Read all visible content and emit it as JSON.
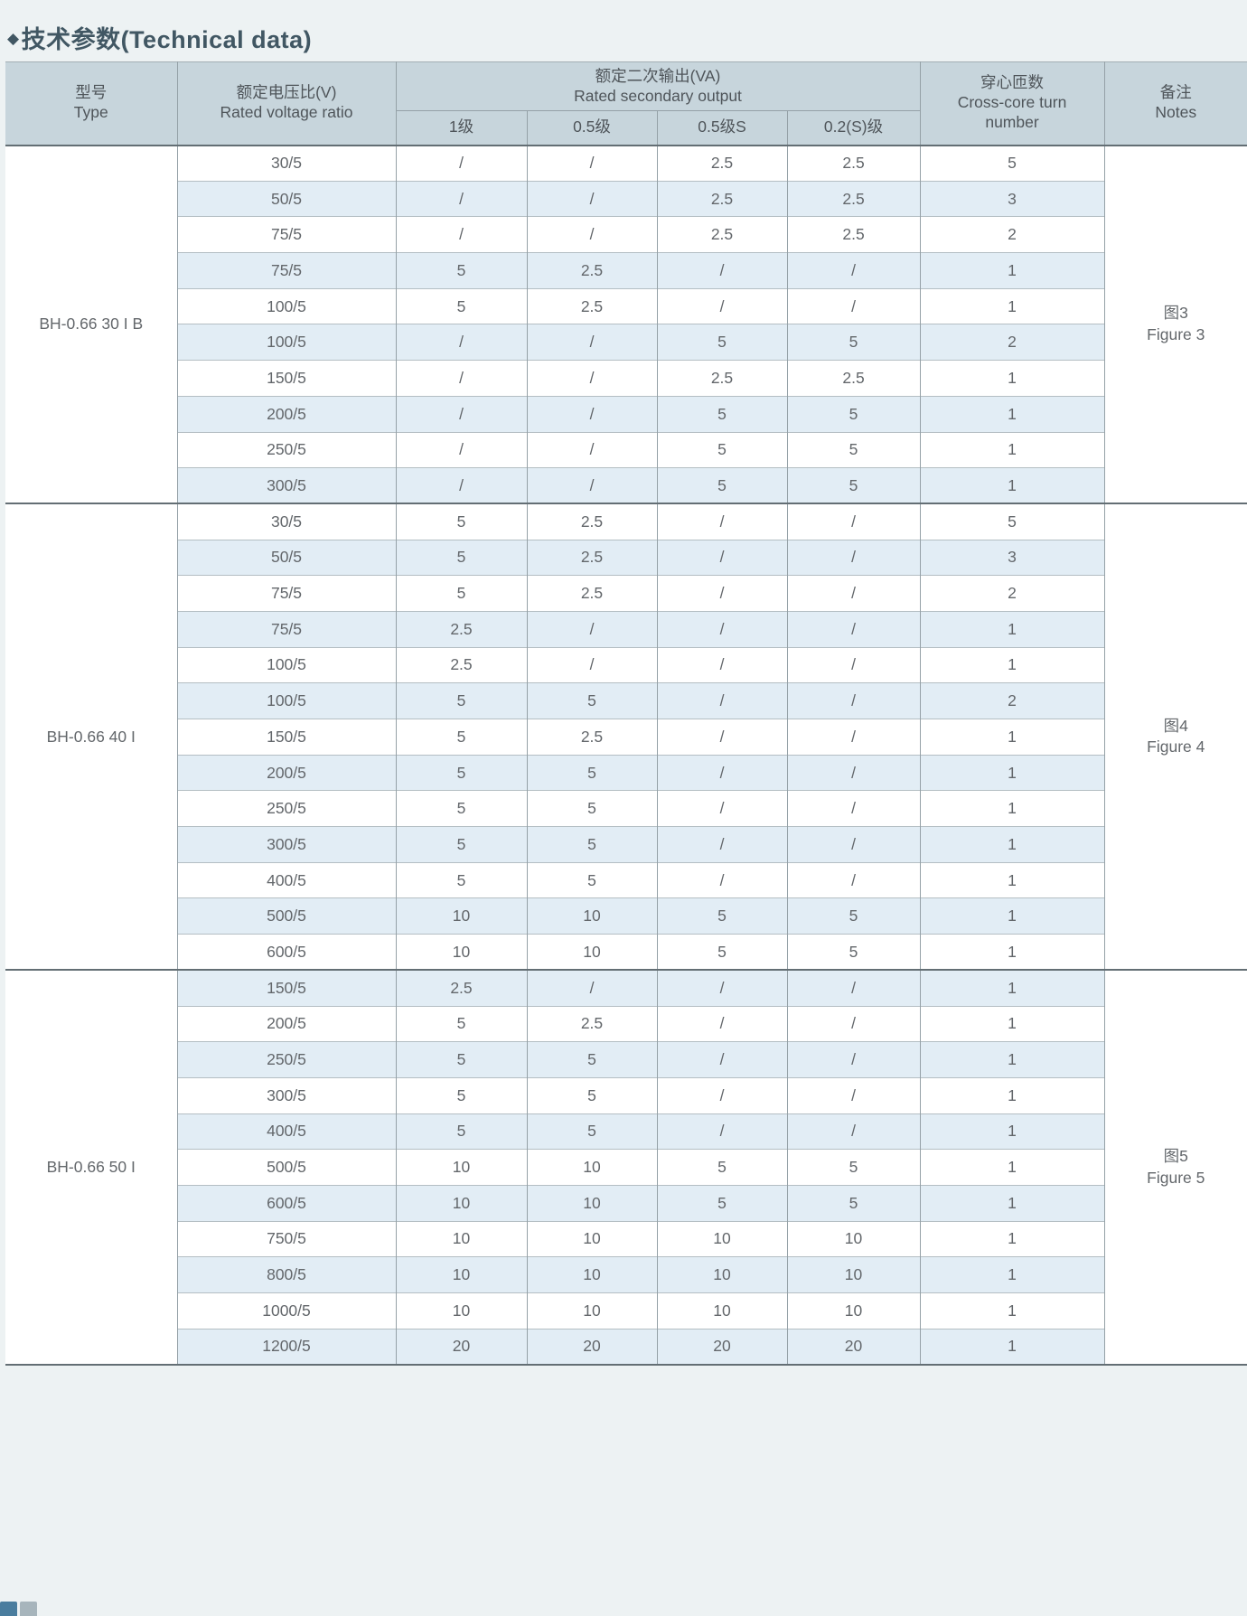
{
  "title": {
    "bullet": "◆",
    "text": "技术参数(Technical data)"
  },
  "colors": {
    "page_bg": "#edf2f3",
    "header_bg": "#c7d5dc",
    "stripe_bg": "#e2edf5",
    "title_color": "#415763",
    "text": "#63676b"
  },
  "table": {
    "header": {
      "type": {
        "zh": "型号",
        "en": "Type"
      },
      "ratio": {
        "zh": "额定电压比(V)",
        "en": "Rated voltage ratio"
      },
      "output": {
        "zh": "额定二次输出(VA)",
        "en": "Rated secondary output"
      },
      "turns": {
        "zh": "穿心匝数",
        "en": "Cross-core turn number"
      },
      "notes": {
        "zh": "备注",
        "en": "Notes"
      },
      "output_classes": [
        "1级",
        "0.5级",
        "0.5级S",
        "0.2(S)级"
      ]
    },
    "sections": [
      {
        "type": "BH-0.66  30 I B",
        "note_zh": "图3",
        "note_en": "Figure 3",
        "rows": [
          [
            "30/5",
            "/",
            "/",
            "2.5",
            "2.5",
            "5"
          ],
          [
            "50/5",
            "/",
            "/",
            "2.5",
            "2.5",
            "3"
          ],
          [
            "75/5",
            "/",
            "/",
            "2.5",
            "2.5",
            "2"
          ],
          [
            "75/5",
            "5",
            "2.5",
            "/",
            "/",
            "1"
          ],
          [
            "100/5",
            "5",
            "2.5",
            "/",
            "/",
            "1"
          ],
          [
            "100/5",
            "/",
            "/",
            "5",
            "5",
            "2"
          ],
          [
            "150/5",
            "/",
            "/",
            "2.5",
            "2.5",
            "1"
          ],
          [
            "200/5",
            "/",
            "/",
            "5",
            "5",
            "1"
          ],
          [
            "250/5",
            "/",
            "/",
            "5",
            "5",
            "1"
          ],
          [
            "300/5",
            "/",
            "/",
            "5",
            "5",
            "1"
          ]
        ]
      },
      {
        "type": "BH-0.66 40 I",
        "note_zh": "图4",
        "note_en": "Figure 4",
        "rows": [
          [
            "30/5",
            "5",
            "2.5",
            "/",
            "/",
            "5"
          ],
          [
            "50/5",
            "5",
            "2.5",
            "/",
            "/",
            "3"
          ],
          [
            "75/5",
            "5",
            "2.5",
            "/",
            "/",
            "2"
          ],
          [
            "75/5",
            "2.5",
            "/",
            "/",
            "/",
            "1"
          ],
          [
            "100/5",
            "2.5",
            "/",
            "/",
            "/",
            "1"
          ],
          [
            "100/5",
            "5",
            "5",
            "/",
            "/",
            "2"
          ],
          [
            "150/5",
            "5",
            "2.5",
            "/",
            "/",
            "1"
          ],
          [
            "200/5",
            "5",
            "5",
            "/",
            "/",
            "1"
          ],
          [
            "250/5",
            "5",
            "5",
            "/",
            "/",
            "1"
          ],
          [
            "300/5",
            "5",
            "5",
            "/",
            "/",
            "1"
          ],
          [
            "400/5",
            "5",
            "5",
            "/",
            "/",
            "1"
          ],
          [
            "500/5",
            "10",
            "10",
            "5",
            "5",
            "1"
          ],
          [
            "600/5",
            "10",
            "10",
            "5",
            "5",
            "1"
          ]
        ]
      },
      {
        "type": "BH-0.66  50 I",
        "note_zh": "图5",
        "note_en": "Figure 5",
        "rows": [
          [
            "150/5",
            "2.5",
            "/",
            "/",
            "/",
            "1"
          ],
          [
            "200/5",
            "5",
            "2.5",
            "/",
            "/",
            "1"
          ],
          [
            "250/5",
            "5",
            "5",
            "/",
            "/",
            "1"
          ],
          [
            "300/5",
            "5",
            "5",
            "/",
            "/",
            "1"
          ],
          [
            "400/5",
            "5",
            "5",
            "/",
            "/",
            "1"
          ],
          [
            "500/5",
            "10",
            "10",
            "5",
            "5",
            "1"
          ],
          [
            "600/5",
            "10",
            "10",
            "5",
            "5",
            "1"
          ],
          [
            "750/5",
            "10",
            "10",
            "10",
            "10",
            "1"
          ],
          [
            "800/5",
            "10",
            "10",
            "10",
            "10",
            "1"
          ],
          [
            "1000/5",
            "10",
            "10",
            "10",
            "10",
            "1"
          ],
          [
            "1200/5",
            "20",
            "20",
            "20",
            "20",
            "1"
          ]
        ]
      }
    ]
  }
}
